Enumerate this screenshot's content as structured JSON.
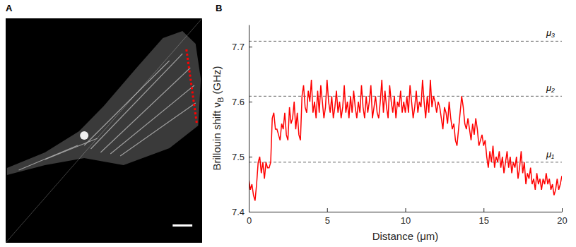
{
  "image_panel": {
    "label": "A"
  },
  "chart_data": {
    "type": "line",
    "panel_label": "B",
    "x_label": "Distance (μm)",
    "y_label": [
      "Brillouin shift ν",
      "B",
      " (GHz)"
    ],
    "xlim": [
      0,
      20
    ],
    "ylim": [
      7.4,
      7.74
    ],
    "xticks": [
      0,
      5,
      10,
      15,
      20
    ],
    "yticks": [
      7.4,
      7.5,
      7.6,
      7.7
    ],
    "annotations": [
      {
        "label": "μ₁",
        "value": 7.49
      },
      {
        "label": "μ₂",
        "value": 7.61
      },
      {
        "label": "μ₃",
        "value": 7.71
      }
    ],
    "x": [
      0,
      0.1,
      0.2,
      0.3,
      0.4,
      0.5,
      0.6,
      0.7,
      0.8,
      0.9,
      1,
      1.1,
      1.2,
      1.3,
      1.4,
      1.5,
      1.6,
      1.7,
      1.8,
      1.9,
      2,
      2.1,
      2.2,
      2.3,
      2.4,
      2.5,
      2.6,
      2.7,
      2.8,
      2.9,
      3,
      3.1,
      3.2,
      3.3,
      3.4,
      3.5,
      3.6,
      3.7,
      3.8,
      3.9,
      4,
      4.1,
      4.2,
      4.3,
      4.4,
      4.5,
      4.6,
      4.7,
      4.8,
      4.9,
      5,
      5.1,
      5.2,
      5.3,
      5.4,
      5.5,
      5.6,
      5.7,
      5.8,
      5.9,
      6,
      6.1,
      6.2,
      6.3,
      6.4,
      6.5,
      6.6,
      6.7,
      6.8,
      6.9,
      7,
      7.1,
      7.2,
      7.3,
      7.4,
      7.5,
      7.6,
      7.7,
      7.8,
      7.9,
      8,
      8.1,
      8.2,
      8.3,
      8.4,
      8.5,
      8.6,
      8.7,
      8.8,
      8.9,
      9,
      9.1,
      9.2,
      9.3,
      9.4,
      9.5,
      9.6,
      9.7,
      9.8,
      9.9,
      10,
      10.1,
      10.2,
      10.3,
      10.4,
      10.5,
      10.6,
      10.7,
      10.8,
      10.9,
      11,
      11.1,
      11.2,
      11.3,
      11.4,
      11.5,
      11.6,
      11.7,
      11.8,
      11.9,
      12,
      12.1,
      12.2,
      12.3,
      12.4,
      12.5,
      12.6,
      12.7,
      12.8,
      12.9,
      13,
      13.1,
      13.2,
      13.3,
      13.4,
      13.5,
      13.6,
      13.7,
      13.8,
      13.9,
      14,
      14.1,
      14.2,
      14.3,
      14.4,
      14.5,
      14.6,
      14.7,
      14.8,
      14.9,
      15,
      15.1,
      15.2,
      15.3,
      15.4,
      15.5,
      15.6,
      15.7,
      15.8,
      15.9,
      16,
      16.1,
      16.2,
      16.3,
      16.4,
      16.5,
      16.6,
      16.7,
      16.8,
      16.9,
      17,
      17.1,
      17.2,
      17.3,
      17.4,
      17.5,
      17.6,
      17.7,
      17.8,
      17.9,
      18,
      18.1,
      18.2,
      18.3,
      18.4,
      18.5,
      18.6,
      18.7,
      18.8,
      18.9,
      19,
      19.1,
      19.2,
      19.3,
      19.4,
      19.5,
      19.6,
      19.7,
      19.8,
      19.9,
      20
    ],
    "series": [
      {
        "color": "#ff0000",
        "values": [
          7.46,
          7.44,
          7.45,
          7.43,
          7.42,
          7.45,
          7.49,
          7.5,
          7.47,
          7.49,
          7.46,
          7.49,
          7.48,
          7.48,
          7.49,
          7.57,
          7.58,
          7.55,
          7.55,
          7.54,
          7.53,
          7.56,
          7.55,
          7.58,
          7.54,
          7.53,
          7.59,
          7.56,
          7.57,
          7.6,
          7.55,
          7.58,
          7.54,
          7.53,
          7.61,
          7.63,
          7.59,
          7.58,
          7.62,
          7.6,
          7.64,
          7.58,
          7.6,
          7.57,
          7.62,
          7.58,
          7.63,
          7.6,
          7.57,
          7.59,
          7.64,
          7.6,
          7.58,
          7.61,
          7.57,
          7.59,
          7.62,
          7.58,
          7.6,
          7.57,
          7.59,
          7.63,
          7.58,
          7.6,
          7.57,
          7.61,
          7.58,
          7.62,
          7.59,
          7.57,
          7.6,
          7.58,
          7.63,
          7.59,
          7.57,
          7.61,
          7.58,
          7.6,
          7.63,
          7.57,
          7.59,
          7.61,
          7.58,
          7.57,
          7.6,
          7.64,
          7.58,
          7.62,
          7.59,
          7.57,
          7.63,
          7.6,
          7.58,
          7.61,
          7.57,
          7.6,
          7.59,
          7.62,
          7.58,
          7.6,
          7.58,
          7.61,
          7.58,
          7.63,
          7.6,
          7.57,
          7.59,
          7.62,
          7.58,
          7.6,
          7.59,
          7.64,
          7.6,
          7.57,
          7.61,
          7.58,
          7.64,
          7.59,
          7.61,
          7.6,
          7.58,
          7.6,
          7.59,
          7.57,
          7.55,
          7.59,
          7.58,
          7.56,
          7.6,
          7.57,
          7.55,
          7.56,
          7.53,
          7.52,
          7.55,
          7.58,
          7.61,
          7.59,
          7.56,
          7.55,
          7.57,
          7.55,
          7.53,
          7.56,
          7.54,
          7.57,
          7.55,
          7.52,
          7.53,
          7.54,
          7.52,
          7.53,
          7.5,
          7.48,
          7.51,
          7.49,
          7.52,
          7.48,
          7.5,
          7.49,
          7.51,
          7.48,
          7.5,
          7.47,
          7.49,
          7.51,
          7.48,
          7.5,
          7.47,
          7.49,
          7.48,
          7.5,
          7.46,
          7.48,
          7.51,
          7.47,
          7.49,
          7.45,
          7.47,
          7.46,
          7.48,
          7.45,
          7.46,
          7.44,
          7.47,
          7.45,
          7.46,
          7.44,
          7.46,
          7.45,
          7.47,
          7.45,
          7.46,
          7.44,
          7.45,
          7.43,
          7.44,
          7.46,
          7.44,
          7.45,
          7.465
        ]
      }
    ]
  }
}
